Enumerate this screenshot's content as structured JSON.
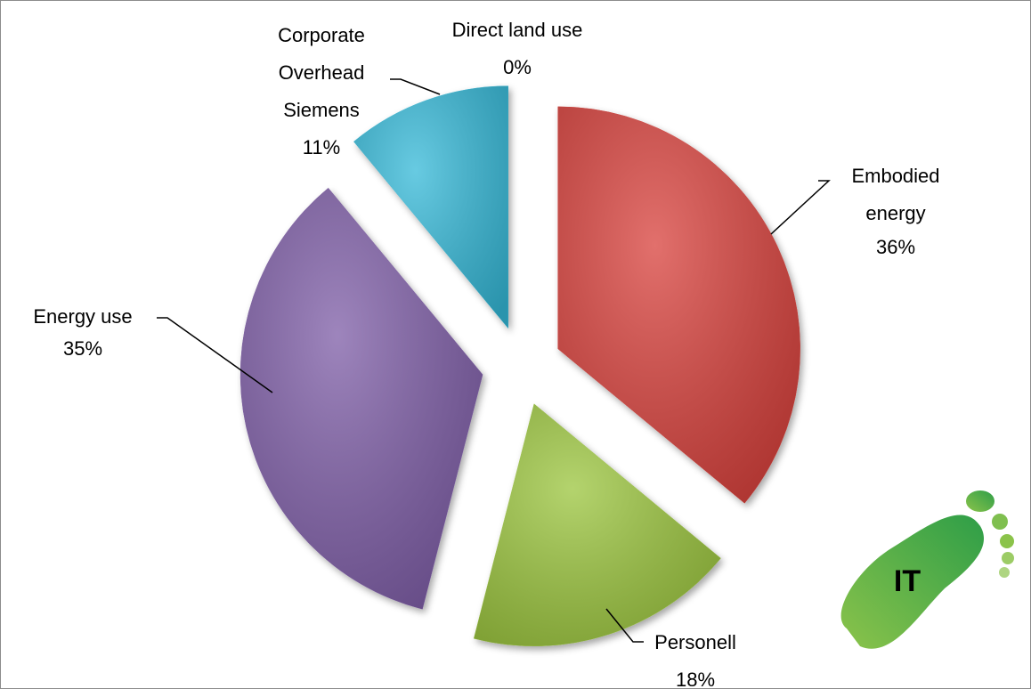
{
  "chart_data": {
    "type": "pie",
    "categories": [
      "Direct land use",
      "Embodied energy",
      "Personell",
      "Energy use",
      "Corporate Overhead Siemens"
    ],
    "values": [
      0,
      36,
      18,
      35,
      11
    ],
    "value_labels": [
      "0%",
      "36%",
      "18%",
      "35%",
      "11%"
    ],
    "colors": [
      "#b0b0b0",
      "#d8403a",
      "#9bc53d",
      "#7d5ba6",
      "#35b9d8"
    ]
  },
  "logo": {
    "text": "IT"
  }
}
